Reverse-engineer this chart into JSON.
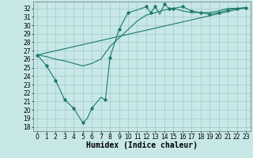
{
  "xlabel": "Humidex (Indice chaleur)",
  "bg_color": "#c8e8e8",
  "grid_color": "#a8cccc",
  "line_color": "#1a7a6a",
  "xlim": [
    -0.5,
    23.5
  ],
  "ylim": [
    17.5,
    32.8
  ],
  "yticks": [
    18,
    19,
    20,
    21,
    22,
    23,
    24,
    25,
    26,
    27,
    28,
    29,
    30,
    31,
    32
  ],
  "xticks": [
    0,
    1,
    2,
    3,
    4,
    5,
    6,
    7,
    8,
    9,
    10,
    11,
    12,
    13,
    14,
    15,
    16,
    17,
    18,
    19,
    20,
    21,
    22,
    23
  ],
  "line1_x": [
    0,
    1,
    2,
    3,
    4,
    5,
    5.5,
    6,
    7,
    7.5,
    8,
    9,
    10,
    11,
    12,
    12.5,
    13,
    13.5,
    14,
    14.5,
    15,
    16,
    17,
    18,
    19,
    20,
    21,
    22,
    23
  ],
  "line1_y": [
    26.5,
    25.2,
    23.5,
    21.2,
    20.2,
    18.5,
    19.0,
    20.2,
    21.5,
    21.2,
    26.2,
    29.5,
    31.5,
    31.8,
    32.2,
    31.5,
    32.2,
    31.3,
    32.5,
    32.0,
    32.0,
    32.2,
    31.7,
    31.5,
    31.3,
    31.5,
    31.8,
    32.0,
    32.1
  ],
  "line2_x": [
    0,
    1,
    2,
    3,
    4,
    5,
    6,
    7,
    8,
    9,
    10,
    11,
    12,
    13,
    14,
    15,
    16,
    17,
    18,
    19,
    20,
    21,
    22,
    23
  ],
  "line2_y": [
    26.5,
    26.3,
    26.0,
    25.8,
    25.5,
    25.2,
    25.5,
    26.0,
    27.5,
    28.5,
    29.5,
    30.5,
    31.2,
    31.5,
    31.8,
    32.0,
    31.7,
    31.5,
    31.5,
    31.5,
    31.7,
    32.0,
    32.0,
    32.0
  ],
  "line3_x": [
    0,
    23
  ],
  "line3_y": [
    26.5,
    32.1
  ],
  "xlabel_fontsize": 7,
  "tick_fontsize": 5.5
}
